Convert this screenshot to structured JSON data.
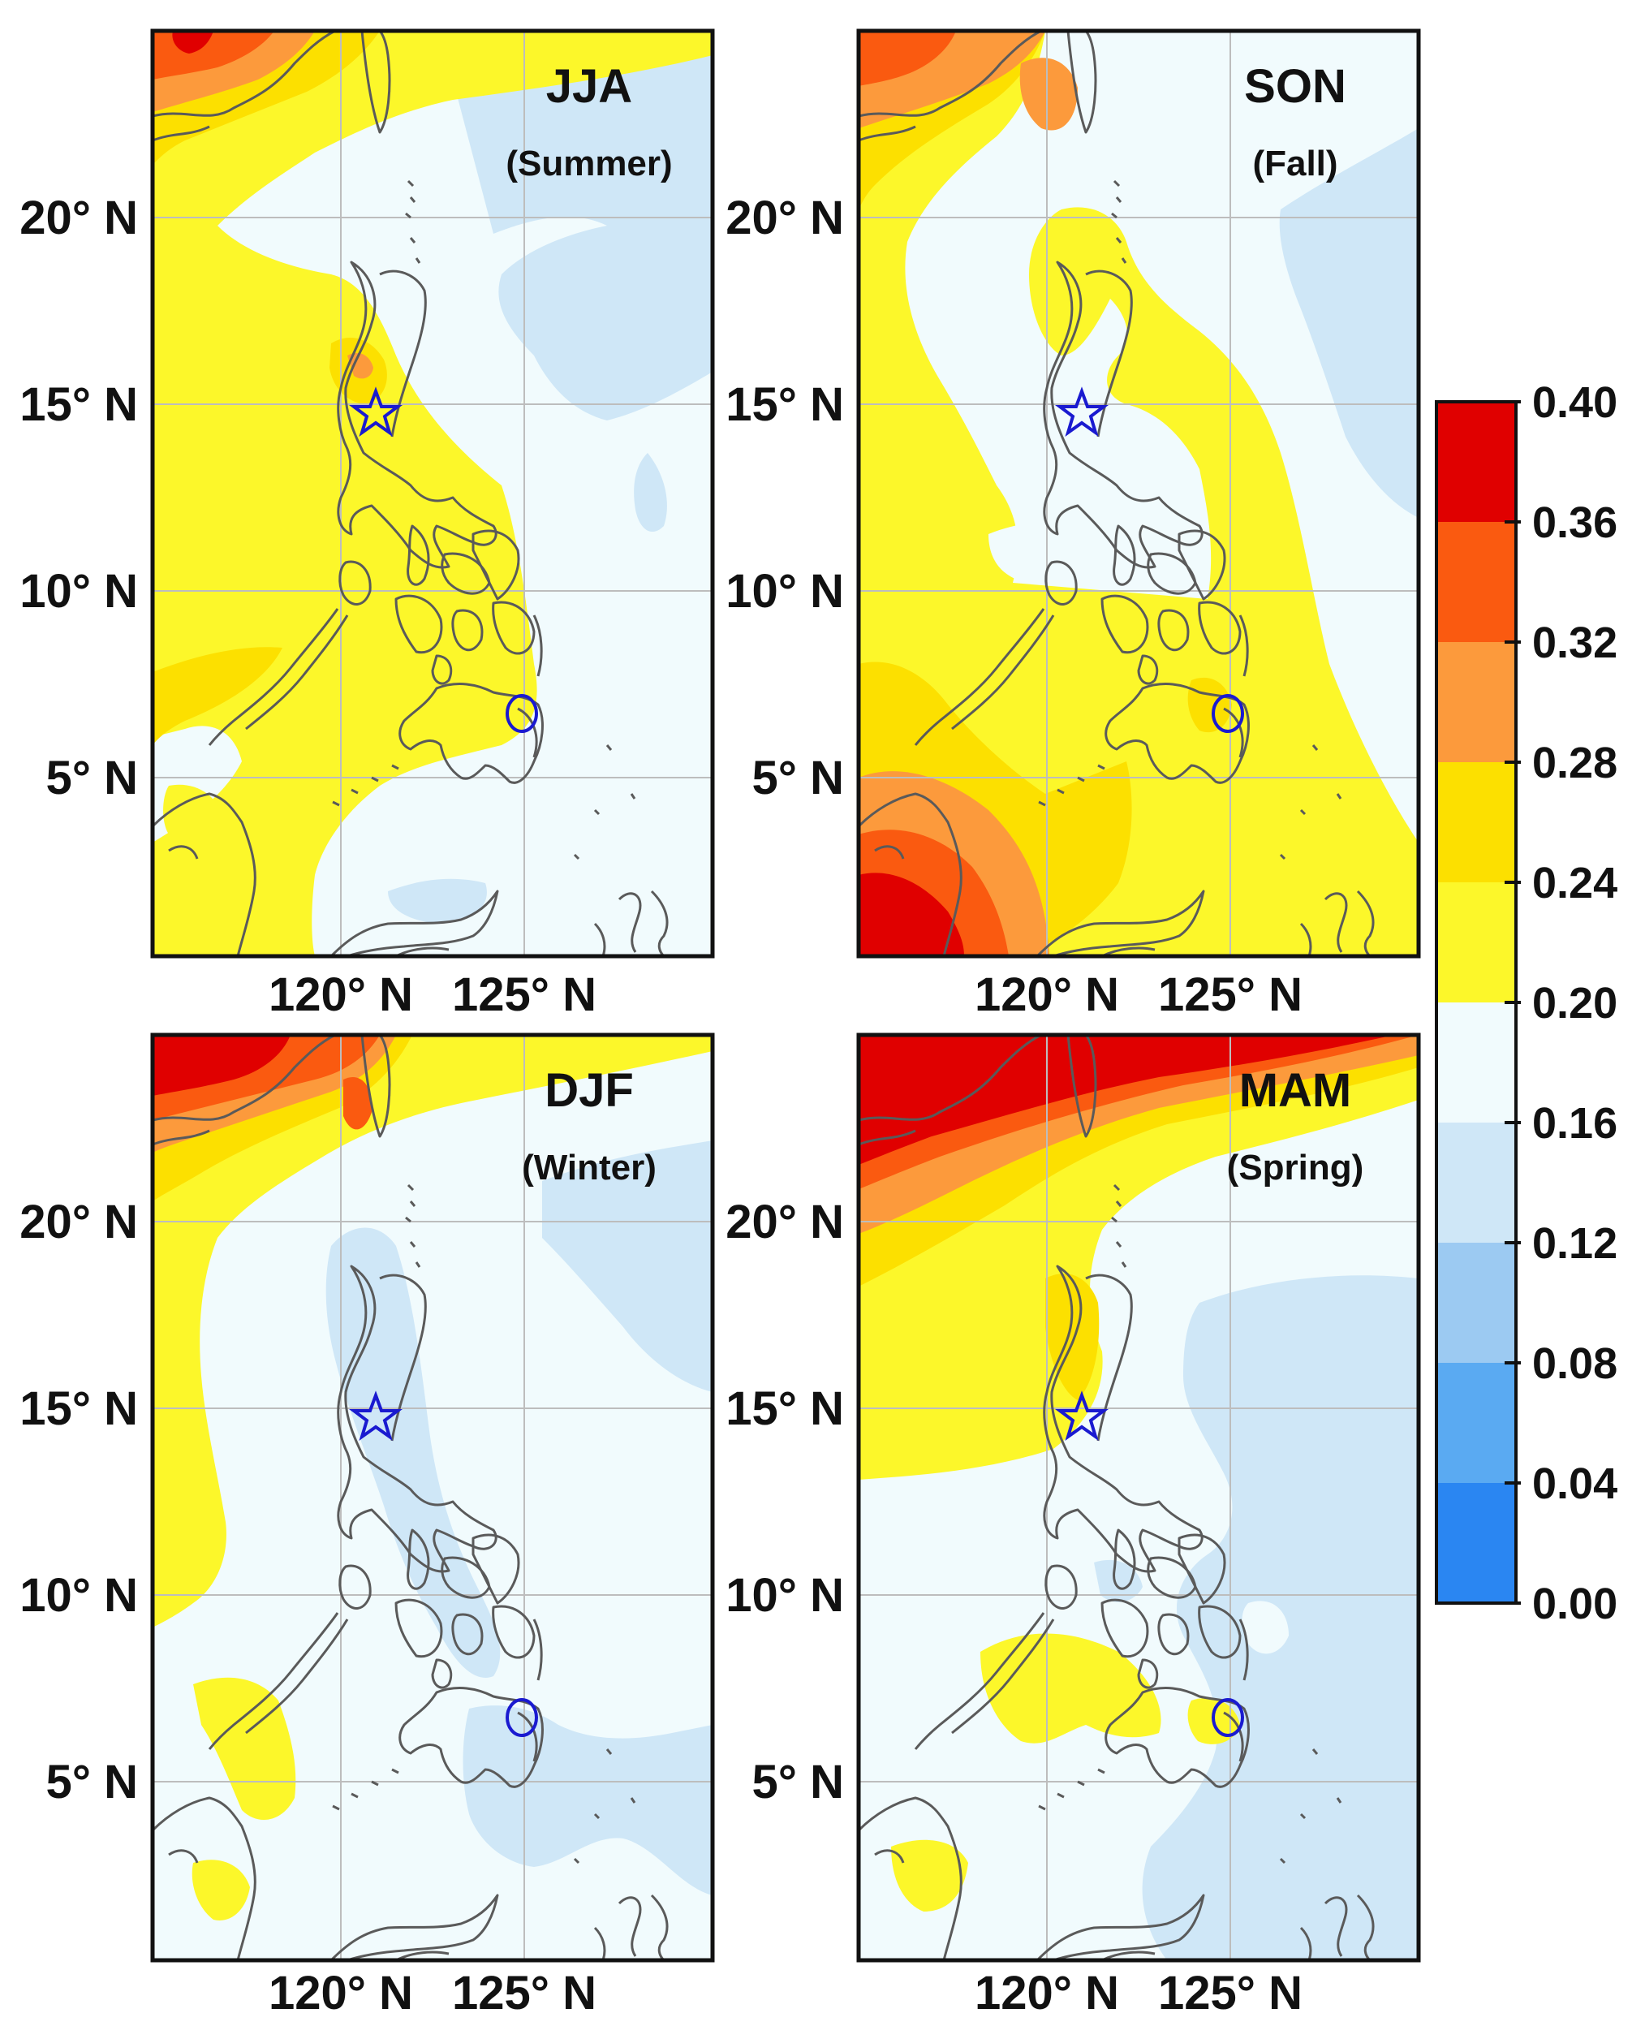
{
  "colorbar": {
    "ticks": [
      "0.40",
      "0.36",
      "0.32",
      "0.28",
      "0.24",
      "0.20",
      "0.16",
      "0.12",
      "0.08",
      "0.04",
      "0.00"
    ],
    "bins_top_to_bottom": [
      "#e00000",
      "#fa5a10",
      "#fc9a3c",
      "#fce000",
      "#fcf72a",
      "#f1fbfd",
      "#cfe7f7",
      "#9ccaf2",
      "#5aaaf2",
      "#2a86f2"
    ]
  },
  "panels": [
    {
      "id": "jja",
      "title": "JJA",
      "subtitle": "(Summer)",
      "lat_labels": [
        "20° N",
        "15° N",
        "10° N",
        "5° N"
      ],
      "lon_labels": [
        "120° N",
        "125° N"
      ]
    },
    {
      "id": "son",
      "title": "SON",
      "subtitle": "(Fall)",
      "lat_labels": [
        "20° N",
        "15° N",
        "10° N",
        "5° N"
      ],
      "lon_labels": [
        "120° N",
        "125° N"
      ]
    },
    {
      "id": "djf",
      "title": "DJF",
      "subtitle": "(Winter)",
      "lat_labels": [
        "20° N",
        "15° N",
        "10° N",
        "5° N"
      ],
      "lon_labels": [
        "120° N",
        "125° N"
      ]
    },
    {
      "id": "mam",
      "title": "MAM",
      "subtitle": "(Spring)",
      "lat_labels": [
        "20° N",
        "15° N",
        "10° N",
        "5° N"
      ],
      "lon_labels": [
        "120° N",
        "125° N"
      ]
    }
  ],
  "markers": {
    "star": "star-marker",
    "circle": "circle-marker",
    "color": "#1a1ad0"
  }
}
